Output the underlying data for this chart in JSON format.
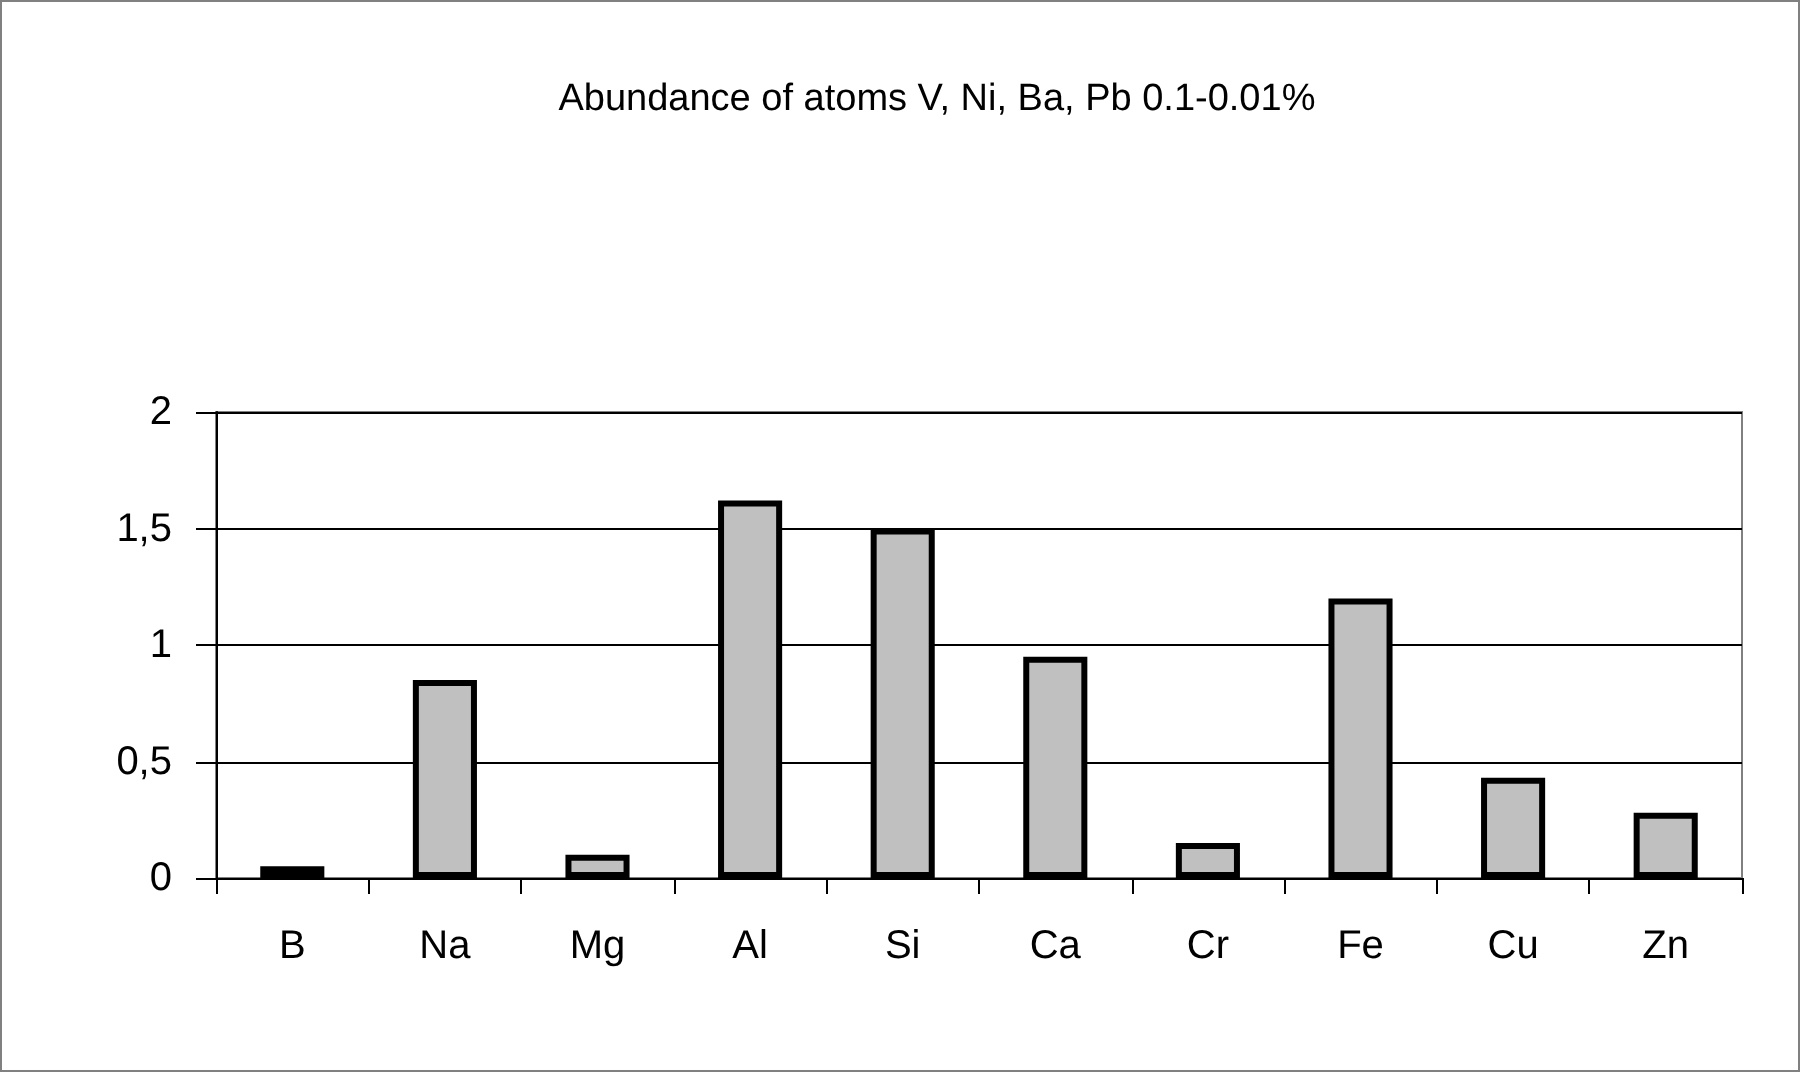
{
  "chart_data": {
    "type": "bar",
    "title": "Abundance of atoms V, Ni, Ba, Pb 0.1-0.01%",
    "categories": [
      "B",
      "Na",
      "Mg",
      "Al",
      "Si",
      "Ca",
      "Cr",
      "Fe",
      "Cu",
      "Zn"
    ],
    "values": [
      0.05,
      0.85,
      0.1,
      1.62,
      1.5,
      0.95,
      0.15,
      1.2,
      0.43,
      0.28
    ],
    "color": "#c0c0c0",
    "ylim": [
      0,
      2
    ],
    "yticks": [
      0,
      {
        "value": 0.5,
        "label": "0,5"
      },
      1,
      {
        "value": 1.5,
        "label": "1,5"
      },
      2
    ],
    "grid": "y"
  }
}
